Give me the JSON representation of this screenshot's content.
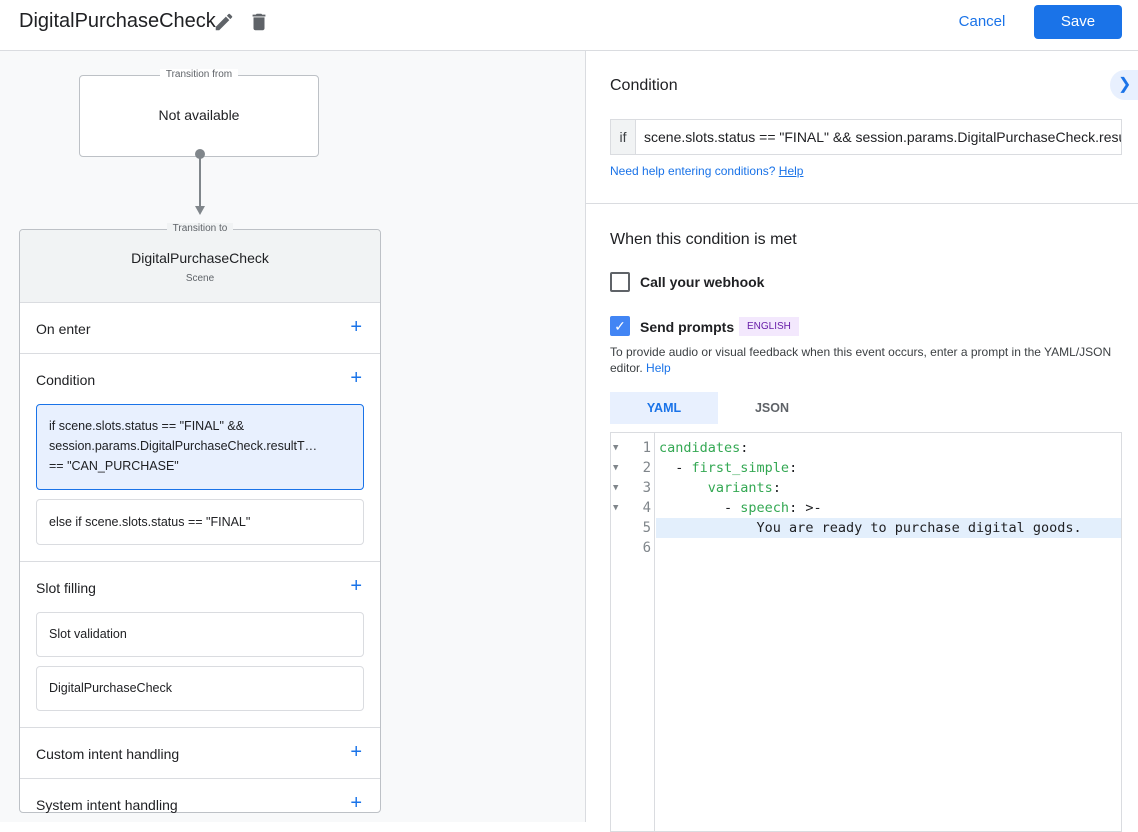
{
  "header": {
    "title": "DigitalPurchaseCheck",
    "cancel_label": "Cancel",
    "save_label": "Save"
  },
  "flow": {
    "from_label": "Transition from",
    "from_value": "Not available",
    "to_label": "Transition to",
    "scene_name": "DigitalPurchaseCheck",
    "scene_type": "Scene",
    "sections": {
      "on_enter": "On enter",
      "condition": "Condition",
      "conditions": [
        "if scene.slots.status == \"FINAL\" &&",
        "session.params.DigitalPurchaseCheck.resultT…",
        "== \"CAN_PURCHASE\""
      ],
      "else_condition": "else if scene.slots.status == \"FINAL\"",
      "slot_filling": "Slot filling",
      "slots": [
        "Slot validation",
        "DigitalPurchaseCheck"
      ],
      "custom_intent": "Custom intent handling",
      "system_intent": "System intent handling"
    }
  },
  "panel": {
    "condition_title": "Condition",
    "if_label": "if",
    "expression": "scene.slots.status == \"FINAL\" && session.params.DigitalPurchaseCheck.resultType == \"CAN_PURCHASE\"",
    "hint": "Need help entering conditions?",
    "hint_link": "Help",
    "met_title": "When this condition is met",
    "webhook_label": "Call your webhook",
    "webhook_checked": false,
    "prompts_label": "Send prompts",
    "prompts_checked": true,
    "language_badge": "ENGLISH",
    "desc": "To provide audio or visual feedback when this event occurs, enter a prompt in the YAML/JSON editor.",
    "desc_link": "Help",
    "tabs": [
      "YAML",
      "JSON"
    ],
    "active_tab": "YAML",
    "code_lines": [
      {
        "n": "1",
        "indent": "",
        "dash": "",
        "key": "candidates",
        "rest": ":"
      },
      {
        "n": "2",
        "indent": "  ",
        "dash": "- ",
        "key": "first_simple",
        "rest": ":"
      },
      {
        "n": "3",
        "indent": "      ",
        "dash": "",
        "key": "variants",
        "rest": ":"
      },
      {
        "n": "4",
        "indent": "        ",
        "dash": "- ",
        "key": "speech",
        "rest": ": >-"
      },
      {
        "n": "5",
        "indent": "            ",
        "dash": "",
        "key": "",
        "rest": "You are ready to purchase digital goods."
      },
      {
        "n": "6",
        "indent": "",
        "dash": "",
        "key": "",
        "rest": ""
      }
    ]
  },
  "colors": {
    "accent": "#1a73e8",
    "yaml_key": "#34a853",
    "badge_bg": "#f3e8fd",
    "badge_text": "#681da8"
  }
}
